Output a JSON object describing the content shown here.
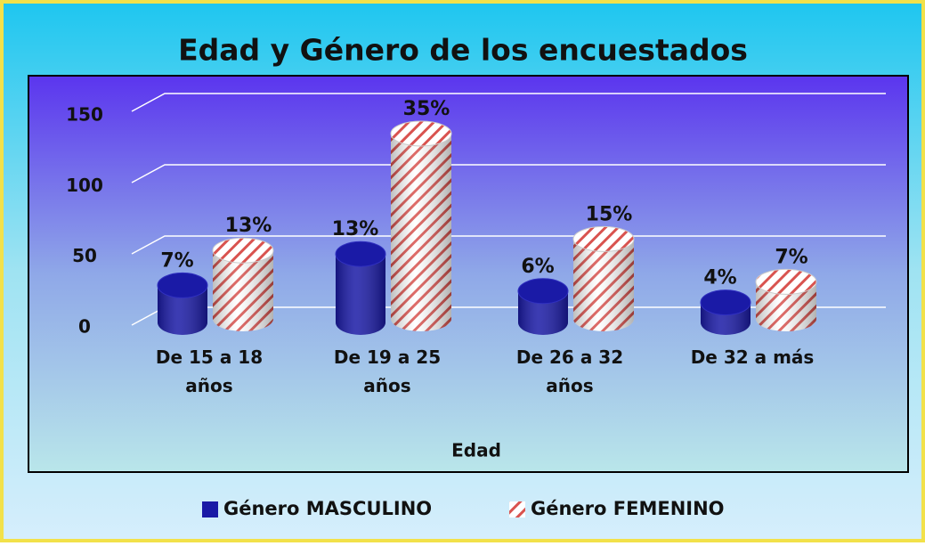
{
  "chart_data": {
    "type": "cylinder-bar",
    "title": "Edad y Género de los encuestados",
    "x_label": "Edad",
    "categories": [
      "De 15 a 18 años",
      "De 19 a 25 años",
      "De 26 a 32 años",
      "De 32 a más"
    ],
    "series": [
      {
        "name": "Género MASCULINO",
        "color": "#1a1aa6",
        "values": [
          26,
          48,
          22,
          14
        ],
        "data_labels": [
          "7%",
          "13%",
          "6%",
          "4%"
        ]
      },
      {
        "name": "Género FEMENINO",
        "color": "#d9534f",
        "values": [
          48,
          130,
          56,
          26
        ],
        "data_labels": [
          "13%",
          "35%",
          "15%",
          "7%"
        ]
      }
    ],
    "ylim": [
      0,
      150
    ],
    "yticks": [
      0,
      50,
      100,
      150
    ],
    "grid": true
  }
}
